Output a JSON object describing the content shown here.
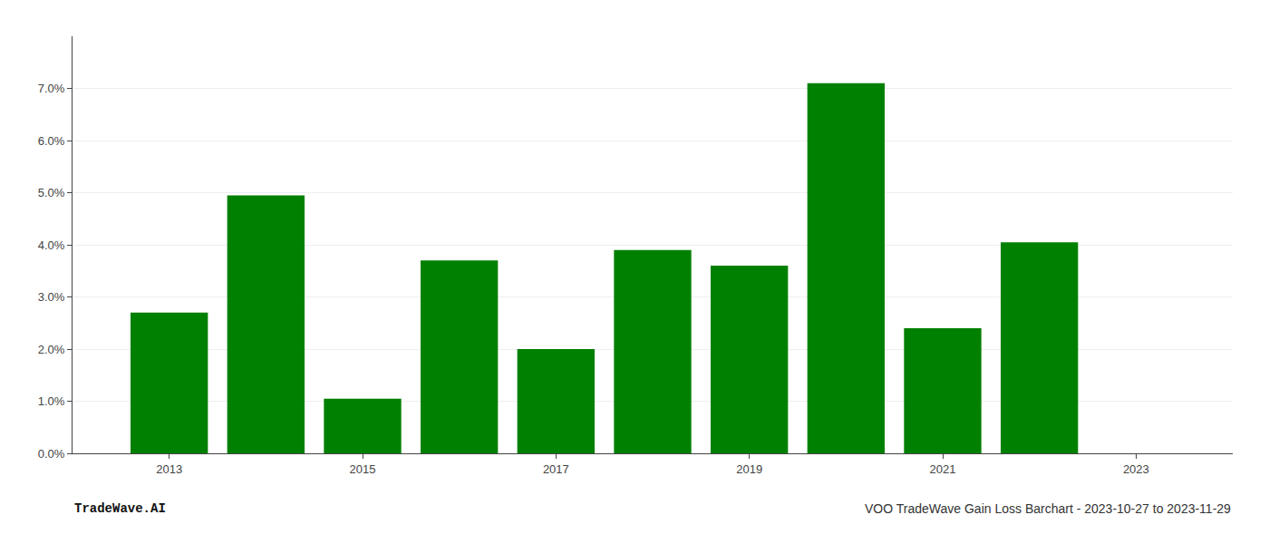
{
  "chart_data": {
    "type": "bar",
    "x": [
      2013,
      2014,
      2015,
      2016,
      2017,
      2018,
      2019,
      2020,
      2021,
      2022,
      2023
    ],
    "values": [
      0.027,
      0.0495,
      0.0105,
      0.037,
      0.02,
      0.039,
      0.036,
      0.071,
      0.024,
      0.0405,
      0.0
    ],
    "color": "#008000",
    "xlim": [
      2012.0,
      2024.0
    ],
    "xticks": [
      2013,
      2015,
      2017,
      2019,
      2021,
      2023
    ],
    "ylim": [
      0.0,
      0.08
    ],
    "yticks": [
      {
        "value": 0.0,
        "label": "0.0%"
      },
      {
        "value": 0.01,
        "label": "1.0%"
      },
      {
        "value": 0.02,
        "label": "2.0%"
      },
      {
        "value": 0.03,
        "label": "3.0%"
      },
      {
        "value": 0.04,
        "label": "4.0%"
      },
      {
        "value": 0.05,
        "label": "5.0%"
      },
      {
        "value": 0.06,
        "label": "6.0%"
      },
      {
        "value": 0.07,
        "label": "7.0%"
      }
    ],
    "grid": true,
    "annotations": [
      "TradeWave.AI",
      "VOO TradeWave Gain Loss Barchart - 2023-10-27 to 2023-11-29"
    ]
  }
}
